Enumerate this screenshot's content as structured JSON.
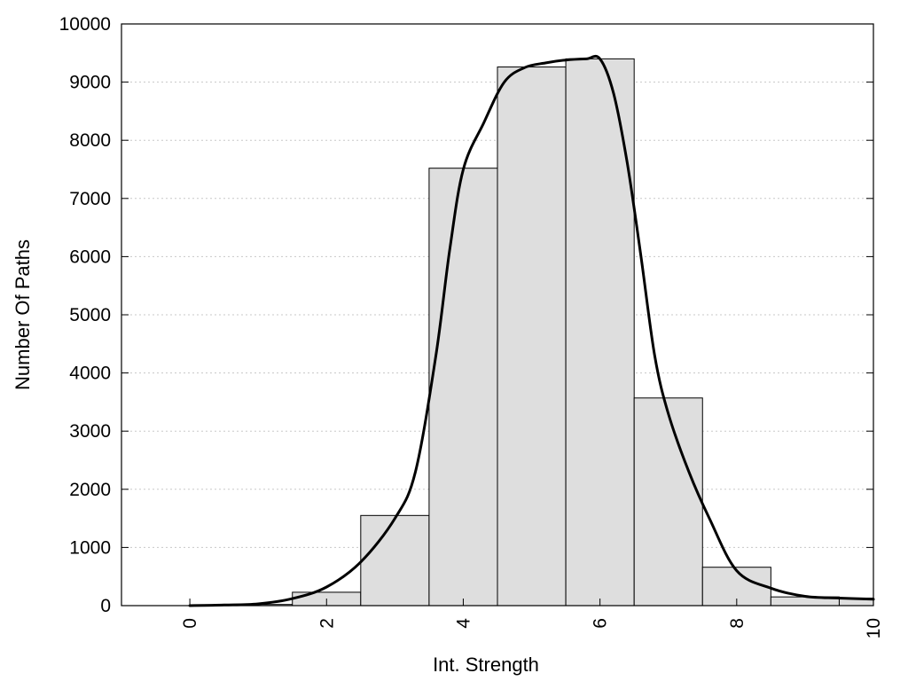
{
  "chart_data": {
    "type": "bar",
    "title": "",
    "xlabel": "Int. Strength",
    "ylabel": "Number Of Paths",
    "xlim": [
      -1,
      10
    ],
    "ylim": [
      0,
      10000
    ],
    "x_ticks": [
      0,
      2,
      4,
      6,
      8,
      10
    ],
    "y_ticks": [
      0,
      1000,
      2000,
      3000,
      4000,
      5000,
      6000,
      7000,
      8000,
      9000,
      10000
    ],
    "grid": "horizontal-dotted",
    "legend": "none",
    "bar_width": 1,
    "bars": [
      {
        "x": 0,
        "value": 0
      },
      {
        "x": 1,
        "value": 20
      },
      {
        "x": 2,
        "value": 230
      },
      {
        "x": 3,
        "value": 1550
      },
      {
        "x": 4,
        "value": 7520
      },
      {
        "x": 5,
        "value": 9260
      },
      {
        "x": 6,
        "value": 9400
      },
      {
        "x": 7,
        "value": 3570
      },
      {
        "x": 8,
        "value": 660
      },
      {
        "x": 9,
        "value": 150
      },
      {
        "x": 10,
        "value": 130
      }
    ],
    "curve": {
      "x": [
        0,
        0.5,
        1,
        1.5,
        2,
        2.5,
        3,
        3.3,
        3.6,
        3.8,
        4,
        4.3,
        4.6,
        4.9,
        5.2,
        5.5,
        5.8,
        6,
        6.2,
        6.4,
        6.6,
        6.8,
        7,
        7.3,
        7.6,
        8,
        8.5,
        9,
        9.5,
        10
      ],
      "y": [
        0,
        10,
        30,
        120,
        320,
        750,
        1500,
        2300,
        4300,
        6100,
        7500,
        8300,
        9000,
        9250,
        9330,
        9380,
        9400,
        9400,
        8800,
        7600,
        6000,
        4300,
        3300,
        2300,
        1500,
        600,
        300,
        160,
        130,
        110
      ]
    },
    "colors": {
      "bar_fill": "#dedede",
      "bar_stroke": "#000000",
      "curve": "#000000",
      "grid": "#c8c8c8",
      "frame": "#000000"
    }
  }
}
